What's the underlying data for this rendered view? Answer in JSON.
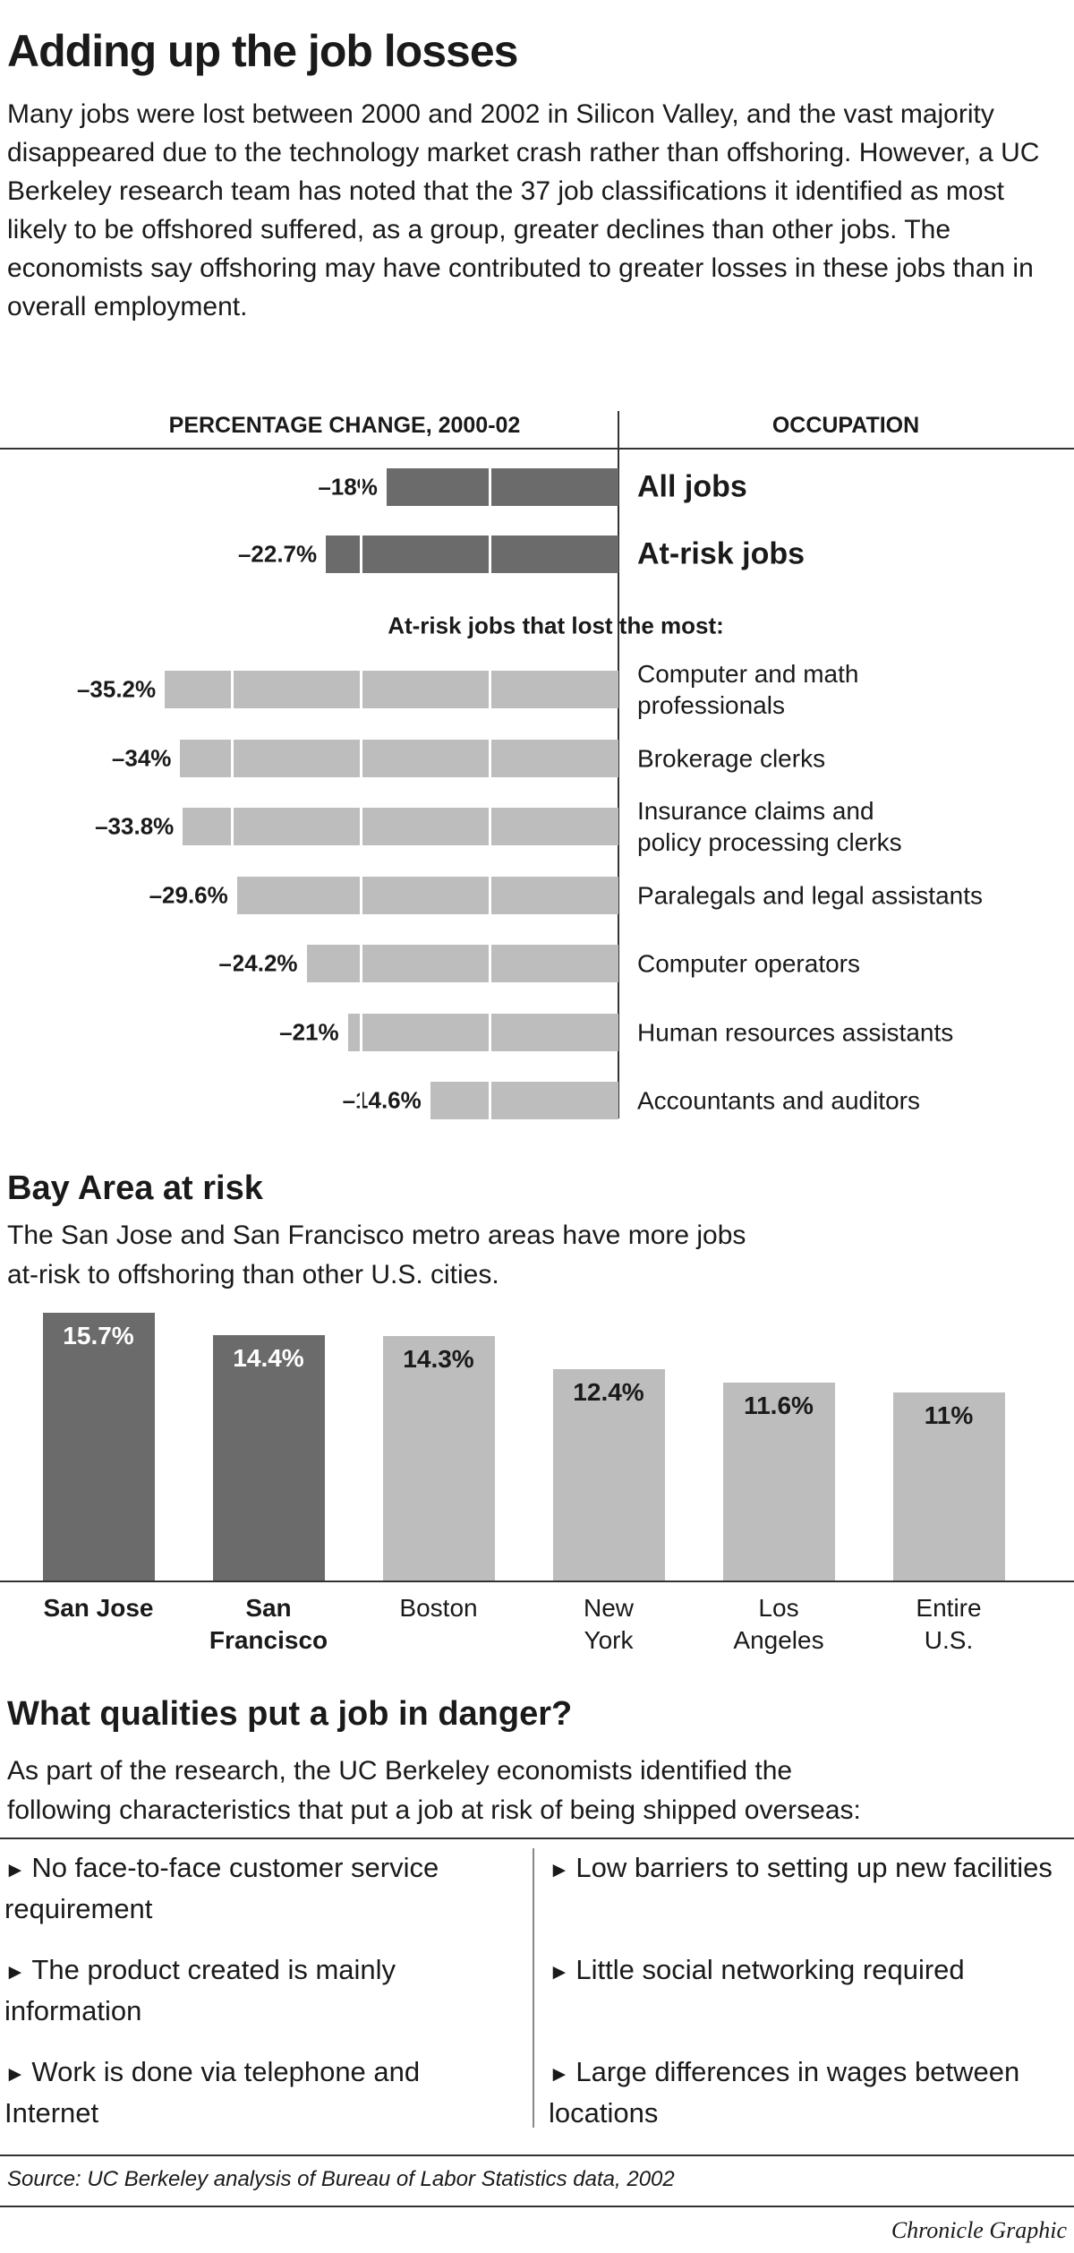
{
  "title": "Adding up the job losses",
  "intro": "Many jobs were lost between 2000 and 2002 in Silicon Valley, and the vast majority disappeared due to the technology market crash rather than offshoring. However, a UC Berkeley research team has noted that the 37 job classifications it identified as most likely to be offshored suffered, as a group, greater declines than other jobs. The economists say offshoring may have contributed to greater losses in these jobs than in overall employment.",
  "chart_data": [
    {
      "type": "bar",
      "orientation": "horizontal",
      "value_header": "PERCENTAGE CHANGE, 2000-02",
      "category_header": "OCCUPATION",
      "categories": [
        "All jobs",
        "At-risk jobs"
      ],
      "values": [
        -18,
        -22.7
      ],
      "value_labels": [
        "–18%",
        "–22.7%"
      ],
      "color": "#6b6b6b",
      "xlim": [
        -40,
        0
      ],
      "xticks": [
        -30,
        -20,
        -10
      ],
      "grid": true
    },
    {
      "type": "bar",
      "orientation": "horizontal",
      "title": "At-risk jobs that lost the most:",
      "categories": [
        "Computer and math\nprofessionals",
        "Brokerage clerks",
        "Insurance claims and\npolicy processing clerks",
        "Paralegals and legal assistants",
        "Computer operators",
        "Human resources assistants",
        "Accountants and auditors"
      ],
      "values": [
        -35.2,
        -34,
        -33.8,
        -29.6,
        -24.2,
        -21,
        -14.6
      ],
      "value_labels": [
        "–35.2%",
        "–34%",
        "–33.8%",
        "–29.6%",
        "–24.2%",
        "–21%",
        "–14.6%"
      ],
      "color": "#bdbdbd",
      "xlim": [
        -40,
        0
      ],
      "xticks": [
        -30,
        -20,
        -10
      ],
      "grid": true
    },
    {
      "type": "column",
      "title": "Bay Area at risk",
      "subtitle": "The San Jose and San Francisco metro areas have more jobs\nat-risk to offshoring than other U.S. cities.",
      "categories": [
        "San Jose",
        "San\nFrancisco",
        "Boston",
        "New\nYork",
        "Los\nAngeles",
        "Entire\nU.S."
      ],
      "values": [
        15.7,
        14.4,
        14.3,
        12.4,
        11.6,
        11
      ],
      "value_labels": [
        "15.7%",
        "14.4%",
        "14.3%",
        "12.4%",
        "11.6%",
        "11%"
      ],
      "colors": [
        "#6b6b6b",
        "#6b6b6b",
        "#bdbdbd",
        "#bdbdbd",
        "#bdbdbd",
        "#bdbdbd"
      ],
      "ylim": [
        0,
        16
      ]
    }
  ],
  "qualities": {
    "title": "What qualities put a job in danger?",
    "text": "As part of the research, the UC Berkeley economists identified the\nfollowing characteristics that put a job at risk of being shipped overseas:",
    "items": [
      "No face-to-face customer service requirement",
      "Low barriers to setting up new facilities",
      "The product created is mainly information",
      "Little social networking required",
      "Work is done via telephone and Internet",
      "Large differences in wages between locations"
    ]
  },
  "source": "Source: UC Berkeley analysis of Bureau of Labor Statistics data, 2002",
  "credit": "Chronicle Graphic"
}
